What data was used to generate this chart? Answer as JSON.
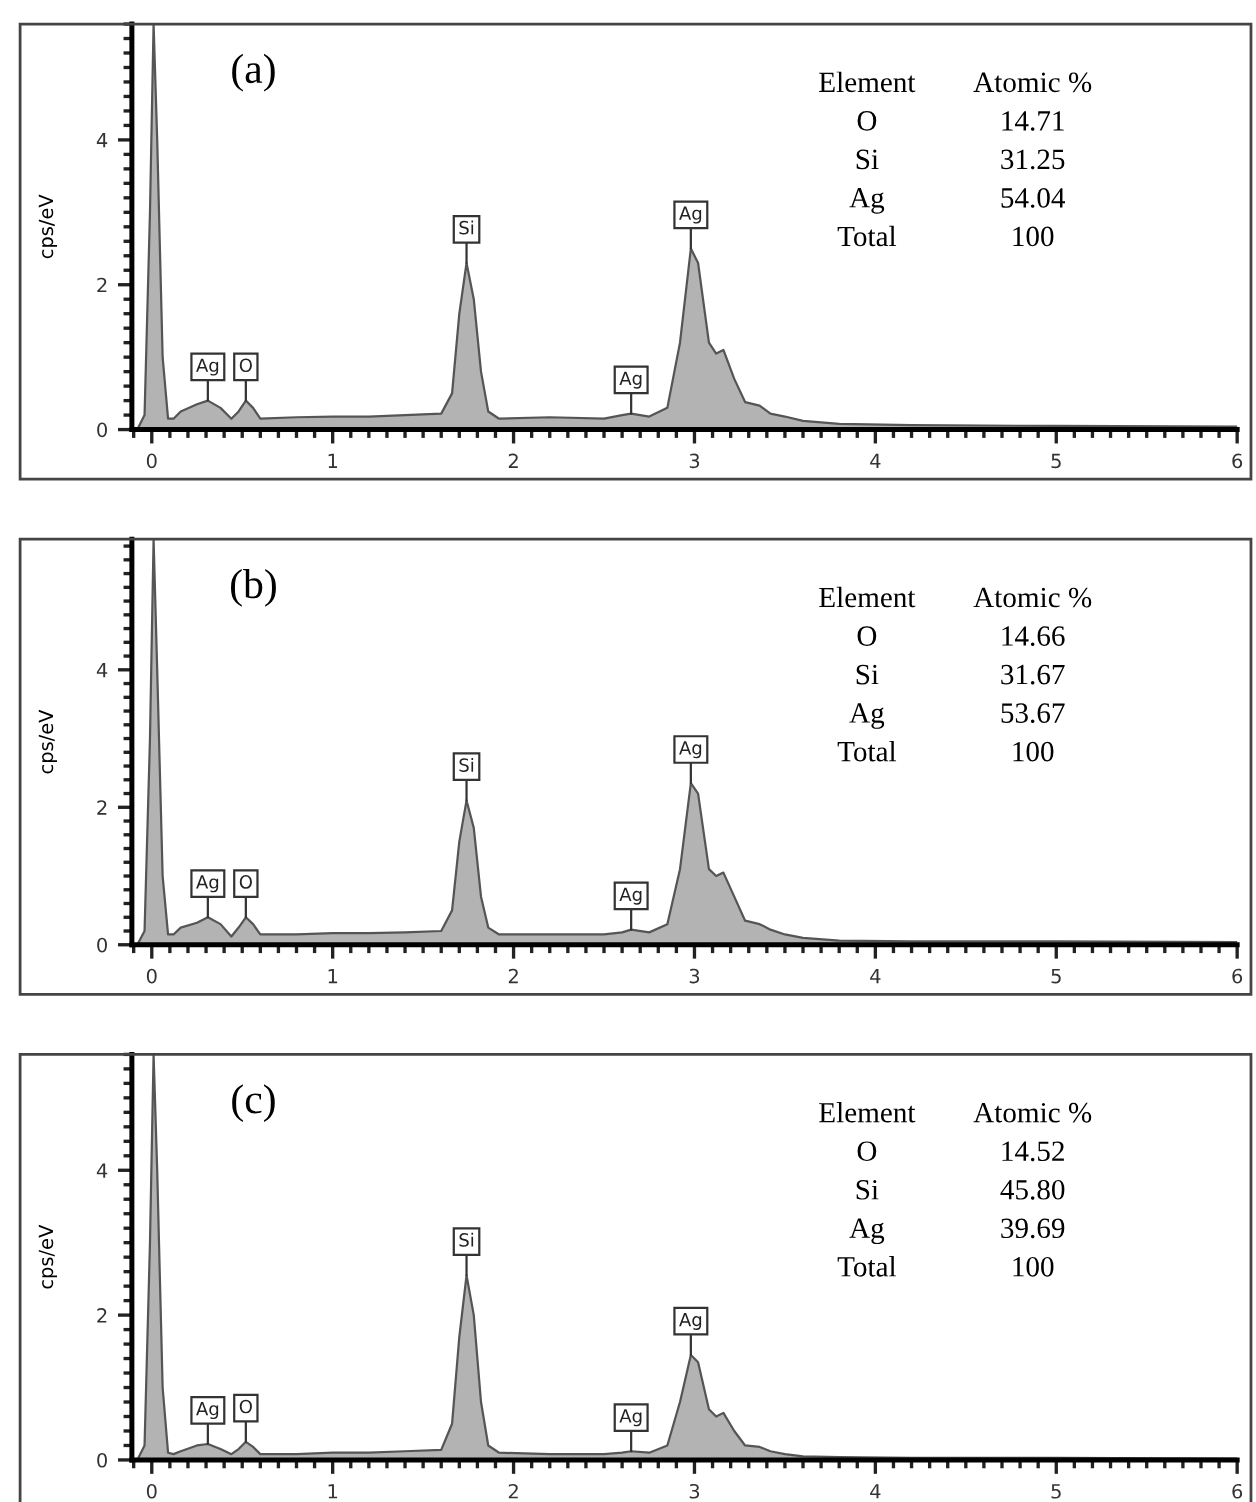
{
  "chart_data": [
    {
      "type": "area",
      "ylabel": "cps/eV",
      "xlim": [
        -0.11,
        6.0
      ],
      "ylim": [
        0,
        5.6
      ],
      "xticks": [
        0,
        1,
        2,
        3,
        4,
        5,
        6
      ],
      "yticks": [
        0,
        2,
        4
      ],
      "grid": false,
      "legend": false,
      "color": "#b3b3b3",
      "x": [
        -0.08,
        -0.04,
        -0.01,
        0.01,
        0.03,
        0.06,
        0.09,
        0.12,
        0.16,
        0.25,
        0.31,
        0.38,
        0.44,
        0.48,
        0.52,
        0.56,
        0.6,
        0.8,
        1.0,
        1.2,
        1.4,
        1.6,
        1.66,
        1.7,
        1.74,
        1.78,
        1.82,
        1.86,
        1.92,
        2.2,
        2.5,
        2.6,
        2.65,
        2.75,
        2.85,
        2.92,
        2.98,
        3.02,
        3.08,
        3.12,
        3.16,
        3.22,
        3.28,
        3.36,
        3.42,
        3.5,
        3.6,
        3.8,
        4.2,
        5.0,
        6.0
      ],
      "values": [
        0,
        0.2,
        3,
        5.6,
        4,
        1,
        0.15,
        0.15,
        0.25,
        0.35,
        0.4,
        0.3,
        0.15,
        0.25,
        0.4,
        0.3,
        0.15,
        0.17,
        0.18,
        0.18,
        0.2,
        0.22,
        0.5,
        1.6,
        2.3,
        1.8,
        0.8,
        0.25,
        0.15,
        0.17,
        0.15,
        0.2,
        0.22,
        0.18,
        0.3,
        1.2,
        2.5,
        2.3,
        1.2,
        1.05,
        1.1,
        0.7,
        0.38,
        0.33,
        0.22,
        0.18,
        0.12,
        0.08,
        0.06,
        0.05,
        0.04
      ],
      "annotations": [
        "(a)",
        "Element",
        "Atomic %",
        "O",
        "14.71",
        "Si",
        "31.25",
        "Ag",
        "54.04",
        "Total",
        "100",
        {
          "text": "Ag",
          "x": 0.31,
          "y": 0.4
        },
        {
          "text": "O",
          "x": 0.52,
          "y": 0.4
        },
        {
          "text": "Si",
          "x": 1.74,
          "y": 2.3
        },
        {
          "text": "Ag",
          "x": 2.65,
          "y": 0.22
        },
        {
          "text": "Ag",
          "x": 2.98,
          "y": 2.5
        }
      ]
    },
    {
      "type": "area",
      "ylabel": "cps/eV",
      "xlim": [
        -0.11,
        6.0
      ],
      "ylim": [
        0,
        5.9
      ],
      "xticks": [
        0,
        1,
        2,
        3,
        4,
        5,
        6
      ],
      "yticks": [
        0,
        2,
        4
      ],
      "grid": false,
      "legend": false,
      "color": "#b3b3b3",
      "x": [
        -0.08,
        -0.04,
        -0.01,
        0.01,
        0.03,
        0.06,
        0.09,
        0.12,
        0.16,
        0.25,
        0.31,
        0.38,
        0.44,
        0.48,
        0.52,
        0.56,
        0.6,
        0.8,
        1.0,
        1.2,
        1.4,
        1.6,
        1.66,
        1.7,
        1.74,
        1.78,
        1.82,
        1.86,
        1.92,
        2.2,
        2.5,
        2.6,
        2.65,
        2.75,
        2.85,
        2.92,
        2.98,
        3.02,
        3.08,
        3.12,
        3.16,
        3.22,
        3.28,
        3.36,
        3.42,
        3.5,
        3.6,
        3.8,
        4.2,
        5.0,
        6.0
      ],
      "values": [
        0,
        0.2,
        3,
        5.9,
        4,
        1,
        0.15,
        0.15,
        0.25,
        0.32,
        0.4,
        0.3,
        0.12,
        0.25,
        0.4,
        0.3,
        0.15,
        0.15,
        0.17,
        0.17,
        0.18,
        0.2,
        0.5,
        1.5,
        2.1,
        1.7,
        0.7,
        0.25,
        0.15,
        0.15,
        0.15,
        0.18,
        0.22,
        0.18,
        0.3,
        1.1,
        2.35,
        2.2,
        1.1,
        1.0,
        1.05,
        0.7,
        0.35,
        0.3,
        0.22,
        0.15,
        0.1,
        0.06,
        0.05,
        0.05,
        0.04
      ],
      "annotations": [
        "(b)",
        "Element",
        "Atomic %",
        "O",
        "14.66",
        "Si",
        "31.67",
        "Ag",
        "53.67",
        "Total",
        "100",
        {
          "text": "Ag",
          "x": 0.31,
          "y": 0.4
        },
        {
          "text": "O",
          "x": 0.52,
          "y": 0.4
        },
        {
          "text": "Si",
          "x": 1.74,
          "y": 2.1
        },
        {
          "text": "Ag",
          "x": 2.65,
          "y": 0.22
        },
        {
          "text": "Ag",
          "x": 2.98,
          "y": 2.35
        }
      ]
    },
    {
      "type": "area",
      "ylabel": "cps/eV",
      "xlim": [
        -0.11,
        6.0
      ],
      "ylim": [
        0,
        5.6
      ],
      "xticks": [
        0,
        1,
        2,
        3,
        4,
        5,
        6
      ],
      "yticks": [
        0,
        2,
        4
      ],
      "grid": false,
      "legend": false,
      "color": "#b3b3b3",
      "x": [
        -0.08,
        -0.04,
        -0.01,
        0.01,
        0.03,
        0.06,
        0.09,
        0.12,
        0.16,
        0.25,
        0.31,
        0.38,
        0.44,
        0.48,
        0.52,
        0.56,
        0.6,
        0.8,
        1.0,
        1.2,
        1.4,
        1.6,
        1.66,
        1.7,
        1.74,
        1.78,
        1.82,
        1.86,
        1.92,
        2.2,
        2.5,
        2.6,
        2.65,
        2.75,
        2.85,
        2.92,
        2.98,
        3.02,
        3.08,
        3.12,
        3.16,
        3.22,
        3.28,
        3.36,
        3.42,
        3.5,
        3.6,
        3.8,
        4.2,
        5.0,
        6.0
      ],
      "values": [
        0,
        0.2,
        3,
        5.6,
        4,
        1,
        0.1,
        0.08,
        0.12,
        0.2,
        0.22,
        0.15,
        0.08,
        0.15,
        0.25,
        0.18,
        0.08,
        0.08,
        0.1,
        0.1,
        0.12,
        0.14,
        0.5,
        1.7,
        2.55,
        2.0,
        0.8,
        0.2,
        0.1,
        0.08,
        0.08,
        0.1,
        0.12,
        0.1,
        0.2,
        0.8,
        1.45,
        1.35,
        0.7,
        0.6,
        0.65,
        0.4,
        0.2,
        0.18,
        0.12,
        0.08,
        0.05,
        0.04,
        0.03,
        0.03,
        0.02
      ],
      "annotations": [
        "(c)",
        "Element",
        "Atomic %",
        "O",
        "14.52",
        "Si",
        "45.80",
        "Ag",
        "39.69",
        "Total",
        "100",
        {
          "text": "Ag",
          "x": 0.31,
          "y": 0.22
        },
        {
          "text": "O",
          "x": 0.52,
          "y": 0.25
        },
        {
          "text": "Si",
          "x": 1.74,
          "y": 2.55
        },
        {
          "text": "Ag",
          "x": 2.65,
          "y": 0.12
        },
        {
          "text": "Ag",
          "x": 2.98,
          "y": 1.45
        }
      ]
    }
  ]
}
